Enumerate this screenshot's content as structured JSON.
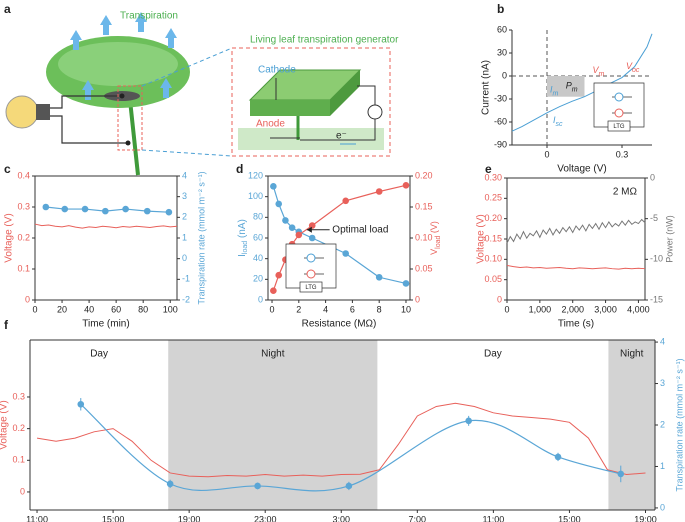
{
  "panel_labels": [
    "a",
    "b",
    "c",
    "d",
    "e",
    "f"
  ],
  "diagram_a": {
    "transpiration": "Transpiration",
    "generator_title": "Living leaf transpiration generator",
    "cathode": "Cathode",
    "anode": "Anode",
    "electron": "e⁻"
  },
  "chart_data": [
    {
      "type": "line",
      "x_label": "Voltage (V)",
      "y_label": "Current (nA)",
      "xlim": [
        -0.14,
        0.42
      ],
      "ylim": [
        -90,
        60
      ],
      "xticks": [
        0,
        0.3
      ],
      "yticks": [
        -90,
        -60,
        -30,
        0,
        30,
        60
      ],
      "zero_lines": true,
      "series": [
        {
          "color": "#4a9fd4",
          "x": [
            -0.14,
            -0.1,
            -0.05,
            0,
            0.05,
            0.1,
            0.15,
            0.2,
            0.25,
            0.3,
            0.35,
            0.4,
            0.42
          ],
          "values": [
            -72,
            -66,
            -57,
            -48,
            -40,
            -33,
            -27,
            -19,
            -10,
            -2,
            12,
            38,
            55
          ]
        }
      ],
      "max_power_point": {
        "voltage": 0.15,
        "current": -27
      },
      "annotations": [
        [
          "V",
          "oc"
        ],
        [
          "V",
          "m"
        ],
        [
          "I",
          "m"
        ],
        [
          "I",
          "sc"
        ],
        [
          "P",
          "m"
        ]
      ],
      "inset_label": "LTG"
    },
    {
      "type": "line",
      "x_label": "Time (min)",
      "y_label": "Voltage (V)",
      "y2_label": "Transpiration rate (mmol m⁻² s⁻¹)",
      "xlim": [
        0,
        105
      ],
      "xticks": [
        0,
        20,
        40,
        60,
        80,
        100
      ],
      "ylim": [
        0,
        0.4
      ],
      "yticks": [
        0,
        0.1,
        0.2,
        0.3,
        0.4
      ],
      "y2lim": [
        -2,
        4
      ],
      "y2ticks": [
        -2,
        -1,
        0,
        1,
        2,
        3,
        4
      ],
      "series": [
        {
          "color": "#e8605a",
          "x": [
            0,
            5,
            10,
            15,
            20,
            25,
            30,
            35,
            40,
            45,
            50,
            55,
            60,
            65,
            70,
            75,
            80,
            85,
            90,
            95,
            100,
            105
          ],
          "values": [
            0.245,
            0.24,
            0.242,
            0.238,
            0.236,
            0.24,
            0.235,
            0.232,
            0.236,
            0.234,
            0.238,
            0.236,
            0.233,
            0.237,
            0.235,
            0.238,
            0.236,
            0.234,
            0.237,
            0.239,
            0.236,
            0.238
          ]
        },
        {
          "color": "#5aa6d6",
          "axis": "y2",
          "markers": true,
          "x": [
            8,
            22,
            37,
            52,
            67,
            83,
            99
          ],
          "values": [
            2.5,
            2.4,
            2.4,
            2.3,
            2.4,
            2.3,
            2.25
          ]
        }
      ]
    },
    {
      "type": "line",
      "x_label": "Resistance (MΩ)",
      "y_label": [
        "I",
        "load",
        " (nA)"
      ],
      "y2_label": [
        "V",
        "load",
        " (V)"
      ],
      "xlim": [
        -0.3,
        10.3
      ],
      "xticks": [
        0,
        2,
        4,
        6,
        8,
        10
      ],
      "ylim": [
        0,
        120
      ],
      "yticks": [
        0,
        20,
        40,
        60,
        80,
        100,
        120
      ],
      "y2lim": [
        0,
        0.2
      ],
      "y2ticks": [
        0,
        {
          "value": 0.05,
          "label": "0.05"
        },
        {
          "value": 0.1,
          "label": "0.10"
        },
        {
          "value": 0.15,
          "label": "0.15"
        },
        {
          "value": 0.2,
          "label": "0.20"
        }
      ],
      "series": [
        {
          "color": "#5aa6d6",
          "markers": true,
          "x": [
            0.1,
            0.5,
            1,
            1.5,
            2,
            3,
            5.5,
            8,
            10
          ],
          "values": [
            110,
            93,
            77,
            70,
            66,
            60,
            45,
            22,
            16
          ]
        },
        {
          "color": "#e8605a",
          "axis": "y2",
          "markers": true,
          "x": [
            0.1,
            0.5,
            1,
            1.5,
            2,
            3,
            5.5,
            8,
            10
          ],
          "values": [
            0.015,
            0.04,
            0.065,
            0.09,
            0.105,
            0.12,
            0.16,
            0.175,
            0.185
          ]
        }
      ],
      "annotation": "Optimal load",
      "inset_label": "LTG"
    },
    {
      "type": "line",
      "x_label": "Time (s)",
      "y_label": "Voltage (V)",
      "y2_label": "Power (nW)",
      "xlim": [
        0,
        4200
      ],
      "xticks": [
        0,
        {
          "value": 1000,
          "label": "1,000"
        },
        {
          "value": 2000,
          "label": "2,000"
        },
        {
          "value": 3000,
          "label": "3,000"
        },
        {
          "value": 4000,
          "label": "4,000"
        }
      ],
      "ylim": [
        0,
        0.3
      ],
      "yticks": [
        0,
        {
          "value": 0.05,
          "label": "0.05"
        },
        {
          "value": 0.1,
          "label": "0.10"
        },
        {
          "value": 0.15,
          "label": "0.15"
        },
        {
          "value": 0.2,
          "label": "0.20"
        },
        {
          "value": 0.25,
          "label": "0.25"
        },
        {
          "value": 0.3,
          "label": "0.30"
        }
      ],
      "y2lim": [
        -15,
        0
      ],
      "y2ticks": [
        -15,
        -10,
        -5,
        0
      ],
      "annotation": "2 MΩ",
      "series": [
        {
          "color": "#e8605a",
          "x": [
            0,
            200,
            400,
            600,
            800,
            1000,
            1200,
            1400,
            1600,
            1800,
            2000,
            2200,
            2400,
            2600,
            2800,
            3000,
            3200,
            3400,
            3600,
            3800,
            4000,
            4200
          ],
          "values": [
            0.085,
            0.082,
            0.08,
            0.081,
            0.079,
            0.08,
            0.078,
            0.079,
            0.08,
            0.078,
            0.077,
            0.079,
            0.078,
            0.077,
            0.078,
            0.079,
            0.077,
            0.076,
            0.078,
            0.077,
            0.078,
            0.077
          ]
        },
        {
          "color": "#777777",
          "axis": "y2",
          "x": [
            0,
            100,
            200,
            300,
            400,
            500,
            600,
            700,
            800,
            900,
            1000,
            1100,
            1200,
            1300,
            1400,
            1500,
            1600,
            1700,
            1800,
            1900,
            2000,
            2100,
            2200,
            2300,
            2400,
            2500,
            2600,
            2700,
            2800,
            2900,
            3000,
            3100,
            3200,
            3300,
            3400,
            3500,
            3600,
            3700,
            3800,
            3900,
            4000,
            4100,
            4200
          ],
          "values": [
            -8,
            -7.2,
            -7.8,
            -6.9,
            -7.5,
            -6.6,
            -7.4,
            -6.8,
            -7.1,
            -6.5,
            -7.3,
            -6.4,
            -6.9,
            -6.2,
            -7,
            -6.3,
            -6.8,
            -6.1,
            -6.6,
            -6,
            -6.7,
            -5.9,
            -6.4,
            -5.8,
            -6.5,
            -5.7,
            -6.2,
            -5.6,
            -6.3,
            -5.5,
            -6.1,
            -5.4,
            -6,
            -5.6,
            -5.9,
            -5.3,
            -5.8,
            -5.2,
            -5.7,
            -5.4,
            -5.6,
            -5.1,
            -5.5
          ]
        }
      ]
    },
    {
      "type": "line",
      "y_label": "Voltage (V)",
      "y2_label": "Transpiration rate (mmol m⁻² s⁻¹)",
      "xlim": [
        -0.37,
        32.5
      ],
      "xticks": [
        {
          "value": 0,
          "label": "11:00"
        },
        {
          "value": 4,
          "label": "15:00"
        },
        {
          "value": 8,
          "label": "19:00"
        },
        {
          "value": 12,
          "label": "23:00"
        },
        {
          "value": 16,
          "label": "3:00"
        },
        {
          "value": 20,
          "label": "7:00"
        },
        {
          "value": 24,
          "label": "11:00"
        },
        {
          "value": 28,
          "label": "15:00"
        },
        {
          "value": 32,
          "label": "19:00"
        }
      ],
      "ylim": [
        -0.057,
        0.48
      ],
      "yticks": [
        0,
        0.1,
        0.2,
        0.3
      ],
      "y2lim": [
        -0.05,
        4.05
      ],
      "y2ticks": [
        0,
        1,
        2,
        3,
        4
      ],
      "band_color": "#d3d3d3",
      "periods": [
        {
          "label": "Day",
          "start": -0.37,
          "end": 6.9,
          "shaded": false
        },
        {
          "label": "Night",
          "start": 6.9,
          "end": 17.9,
          "shaded": true
        },
        {
          "label": "Day",
          "start": 17.9,
          "end": 30.05,
          "shaded": false
        },
        {
          "label": "Night",
          "start": 30.05,
          "end": 32.5,
          "shaded": true
        }
      ],
      "series": [
        {
          "color": "#e8605a",
          "x": [
            0,
            1,
            2,
            3,
            4,
            5,
            6,
            7,
            8,
            9,
            10,
            11,
            12,
            13,
            14,
            15,
            16,
            17,
            18,
            19,
            20,
            21,
            22,
            23,
            24,
            25,
            26,
            27,
            28,
            29,
            30,
            31,
            32
          ],
          "values": [
            0.17,
            0.16,
            0.17,
            0.19,
            0.2,
            0.16,
            0.1,
            0.06,
            0.05,
            0.048,
            0.052,
            0.05,
            0.055,
            0.05,
            0.053,
            0.05,
            0.055,
            0.056,
            0.07,
            0.15,
            0.24,
            0.27,
            0.28,
            0.27,
            0.25,
            0.24,
            0.235,
            0.23,
            0.22,
            0.17,
            0.07,
            0.055,
            0.06
          ]
        },
        {
          "color": "#5aa6d6",
          "axis": "y2",
          "markers": true,
          "smooth": true,
          "x": [
            2.3,
            7,
            11.6,
            16.4,
            22.7,
            27.4,
            30.7
          ],
          "values": [
            2.5,
            0.58,
            0.53,
            0.53,
            2.1,
            1.23,
            0.82
          ],
          "errors": [
            0.15,
            0.1,
            0.08,
            0.1,
            0.12,
            0.1,
            0.2
          ]
        }
      ]
    }
  ]
}
